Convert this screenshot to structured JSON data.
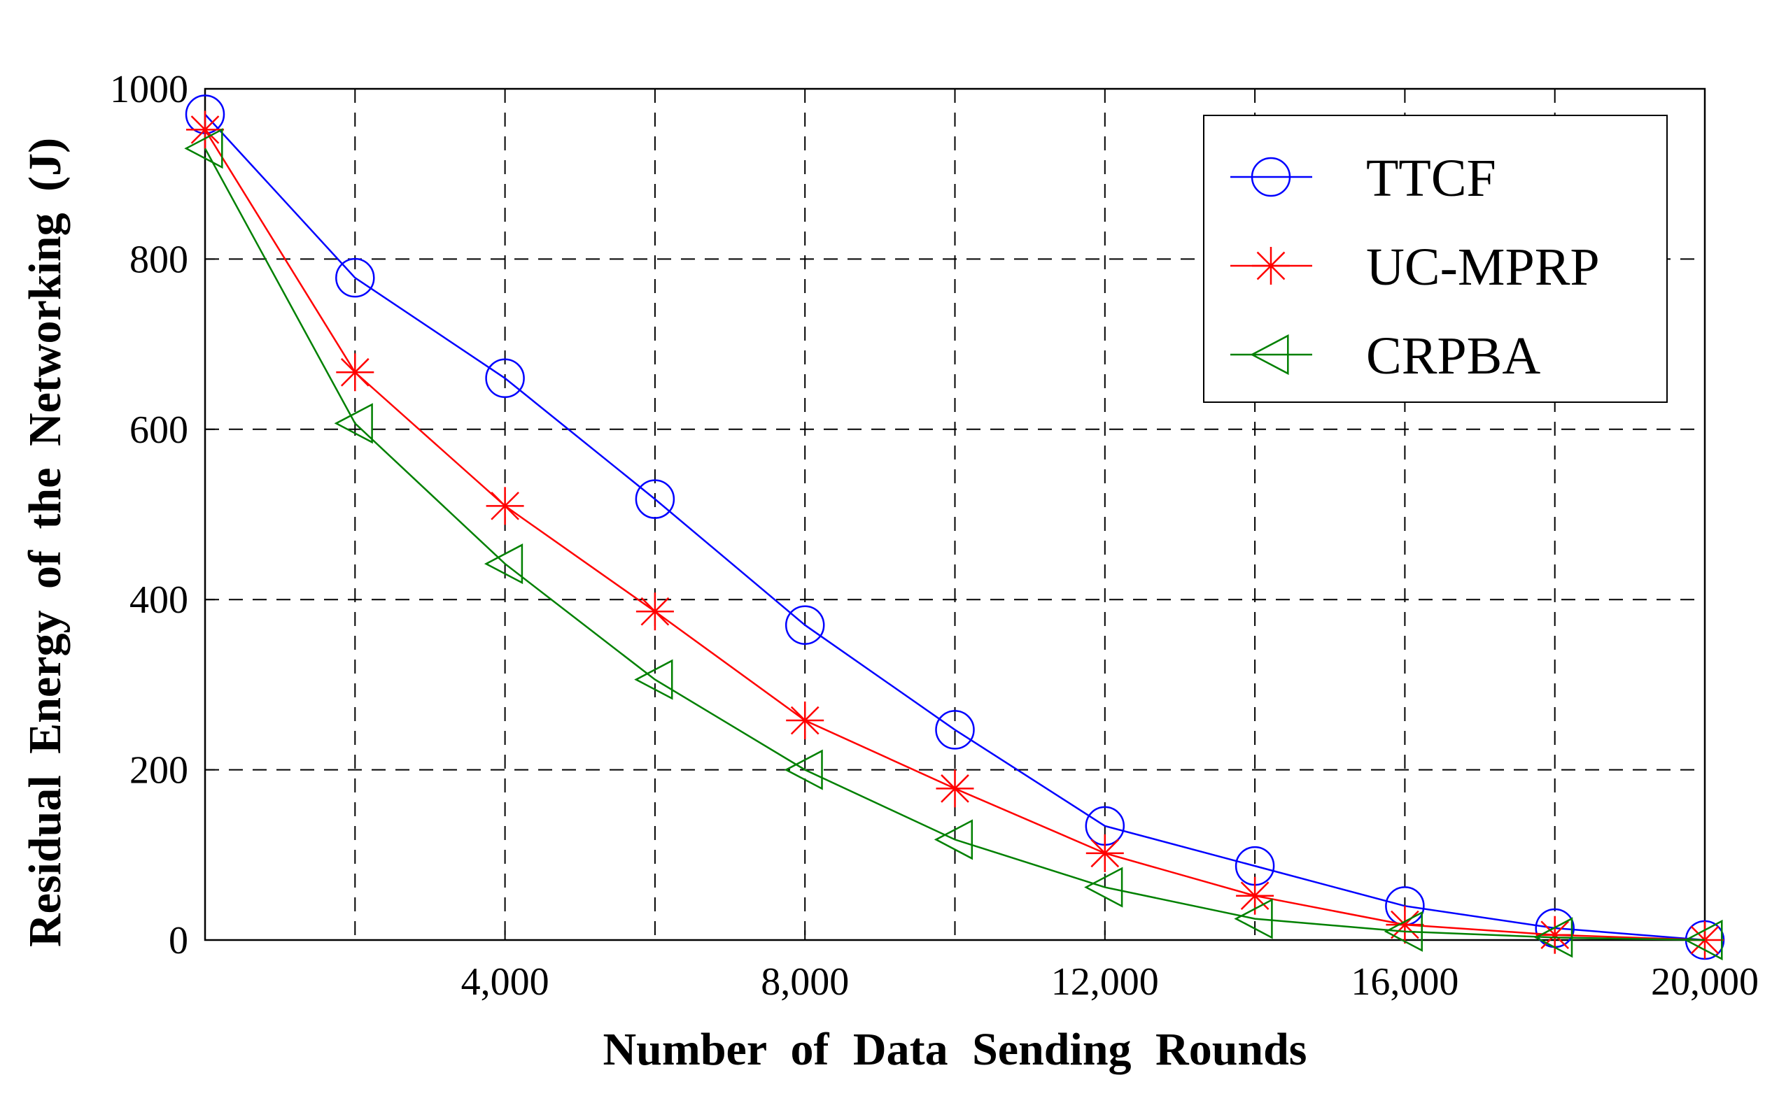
{
  "chart_data": {
    "type": "line",
    "xlabel": "Number of Data Sending Rounds",
    "ylabel": "Residual Energy of the Networking (J)",
    "xlim": [
      0,
      20000
    ],
    "ylim": [
      0,
      1000
    ],
    "x_ticks": [
      4000,
      8000,
      12000,
      16000,
      20000
    ],
    "x_tick_labels": [
      "4,000",
      "8,000",
      "12,000",
      "16,000",
      "20,000"
    ],
    "y_ticks": [
      0,
      200,
      400,
      600,
      800,
      1000
    ],
    "y_tick_labels": [
      "0",
      "200",
      "400",
      "600",
      "800",
      "1000"
    ],
    "x_grid": [
      2000,
      4000,
      6000,
      8000,
      10000,
      12000,
      14000,
      16000,
      18000
    ],
    "y_grid": [
      200,
      400,
      600,
      800
    ],
    "grid": true,
    "legend_position": "top-right",
    "x": [
      0,
      2000,
      4000,
      6000,
      8000,
      10000,
      12000,
      14000,
      16000,
      18000,
      20000
    ],
    "series": [
      {
        "name": "TTCF",
        "color": "#0000ff",
        "marker": "circle",
        "values": [
          970,
          778,
          660,
          518,
          370,
          247,
          134,
          87,
          40,
          14,
          0
        ]
      },
      {
        "name": "UC-MPRP",
        "color": "#ff0000",
        "marker": "asterisk",
        "values": [
          952,
          667,
          510,
          386,
          258,
          178,
          102,
          52,
          18,
          6,
          0
        ]
      },
      {
        "name": "CRPBA",
        "color": "#008000",
        "marker": "triangle-left",
        "values": [
          930,
          607,
          442,
          306,
          200,
          118,
          62,
          25,
          10,
          3,
          0
        ]
      }
    ]
  }
}
